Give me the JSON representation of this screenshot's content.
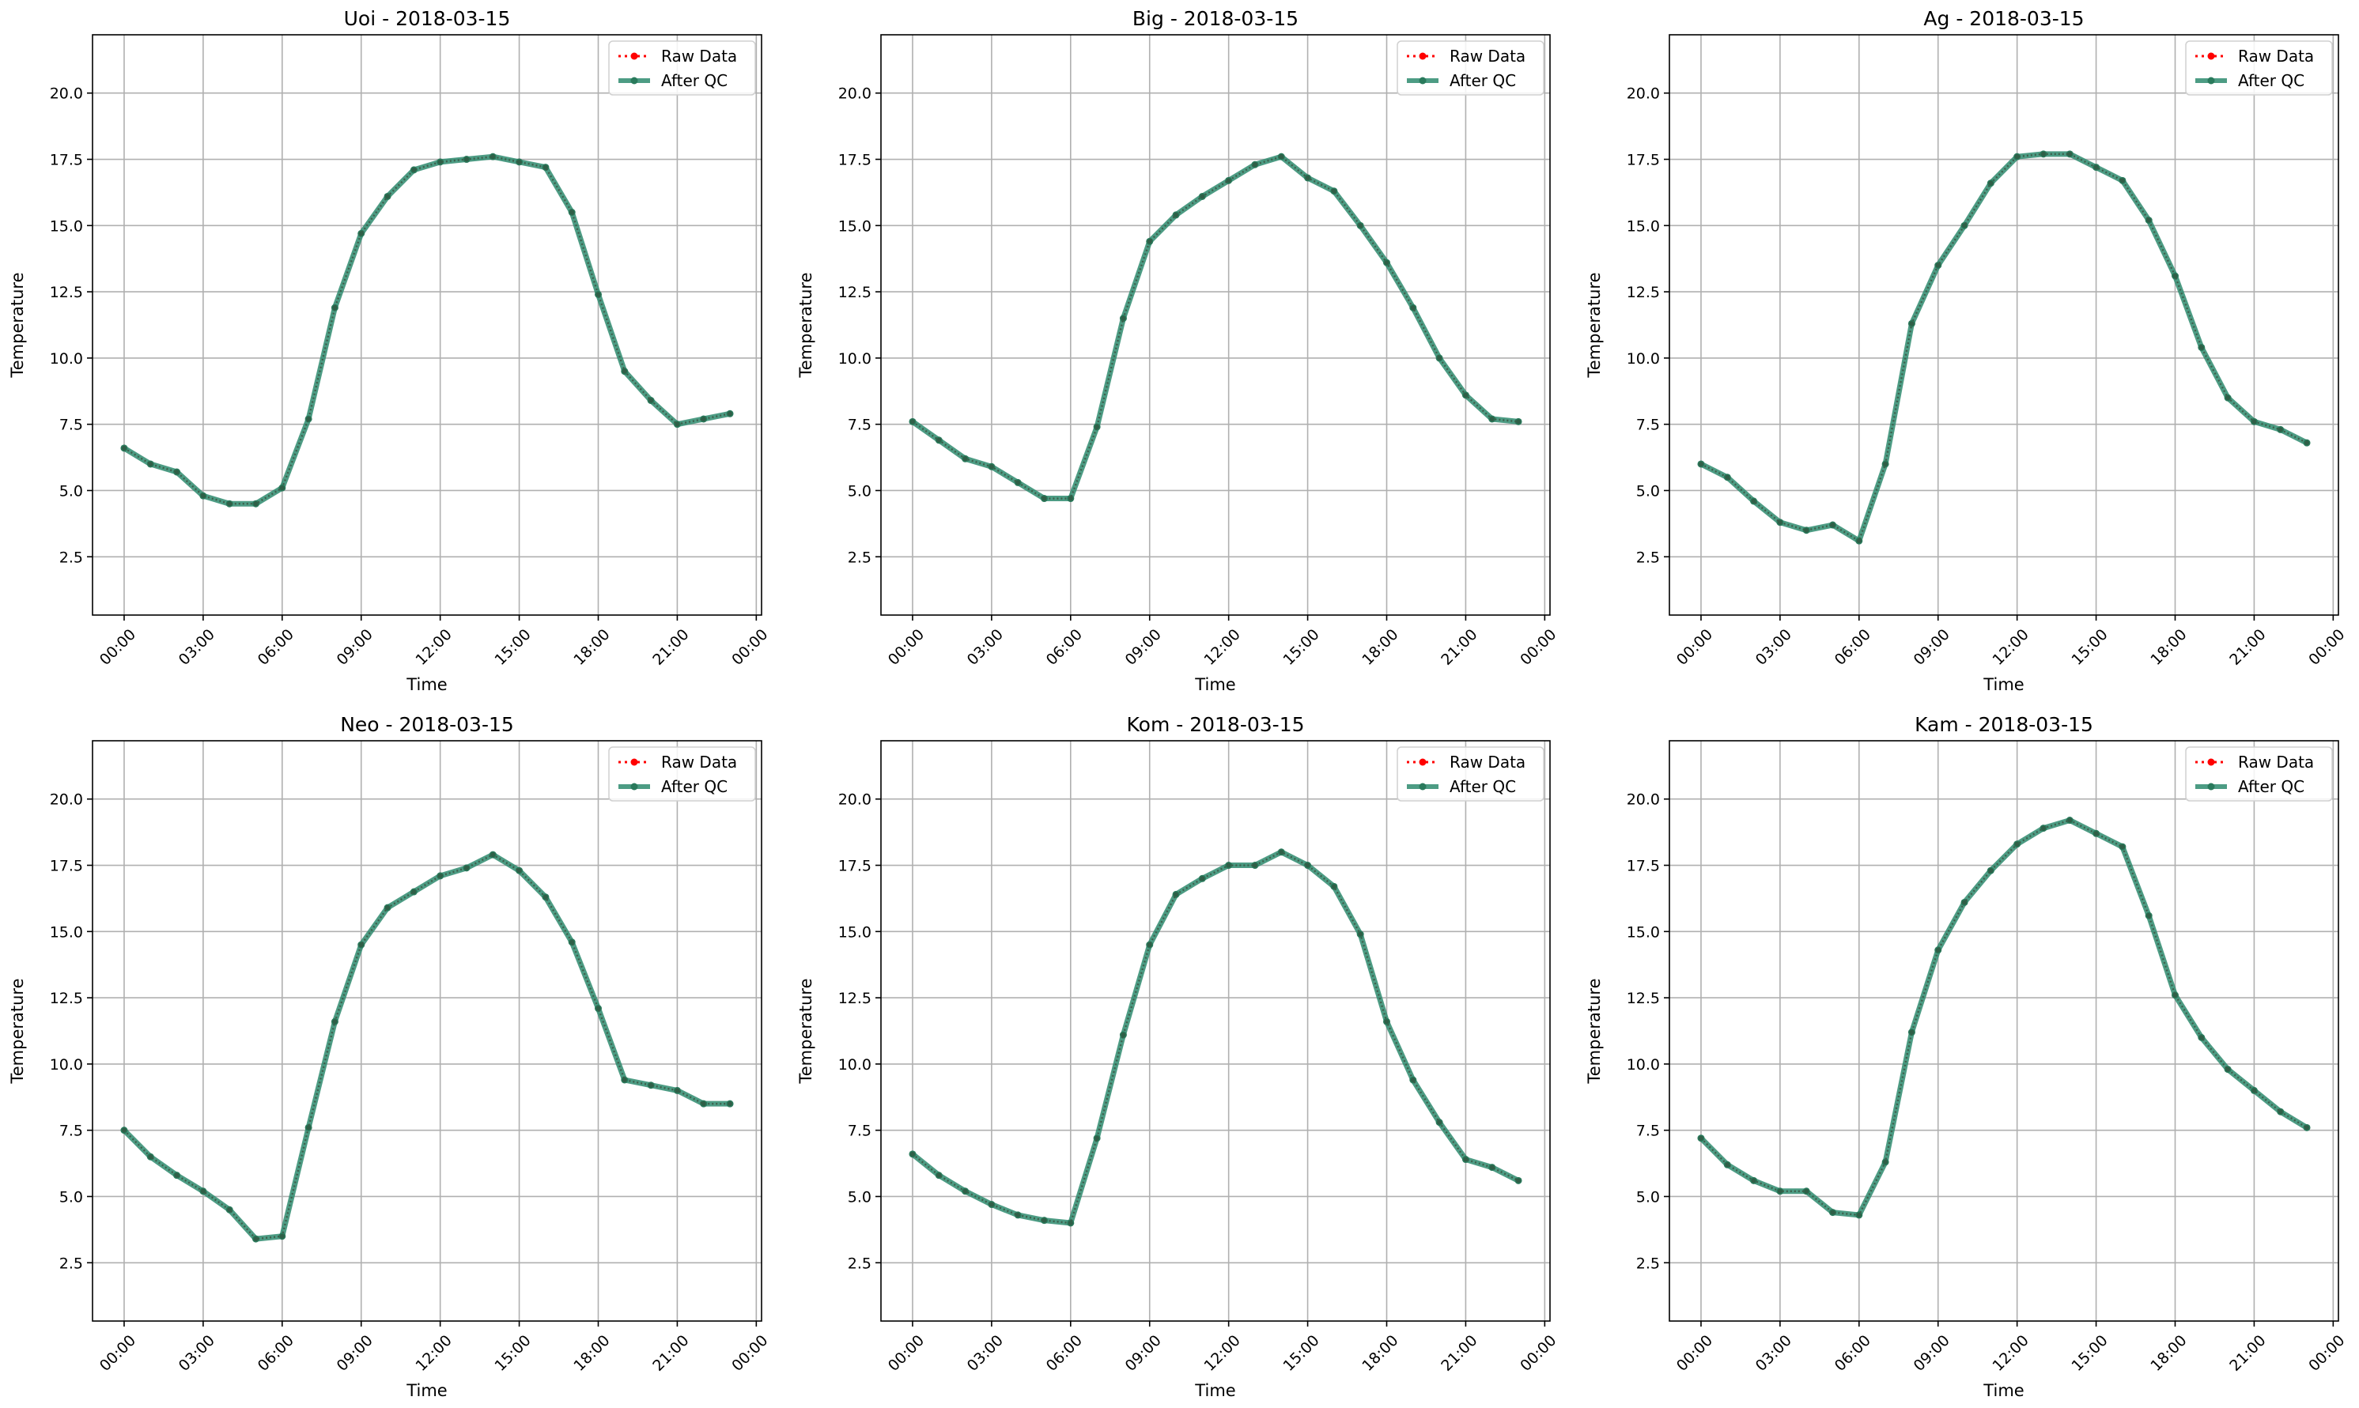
{
  "chart_data": [
    {
      "type": "line",
      "title": "Uoi - 2018-03-15",
      "xlabel": "Time",
      "ylabel": "Temperature",
      "x": [
        "00:00",
        "01:00",
        "02:00",
        "03:00",
        "04:00",
        "05:00",
        "06:00",
        "07:00",
        "08:00",
        "09:00",
        "10:00",
        "11:00",
        "12:00",
        "13:00",
        "14:00",
        "15:00",
        "16:00",
        "17:00",
        "18:00",
        "19:00",
        "20:00",
        "21:00",
        "22:00",
        "23:00"
      ],
      "xticks": [
        "00:00",
        "03:00",
        "06:00",
        "09:00",
        "12:00",
        "15:00",
        "18:00",
        "21:00",
        "00:00"
      ],
      "yticks": [
        2.5,
        5.0,
        7.5,
        10.0,
        12.5,
        15.0,
        17.5,
        20.0
      ],
      "ylim": [
        0.3,
        22.2
      ],
      "xlim_hours": [
        -1.2,
        24.2
      ],
      "grid": true,
      "legend_position": "top-right",
      "series": [
        {
          "name": "Raw Data",
          "color": "#ff0000",
          "style": "dotted-with-markers",
          "values": [
            6.6,
            6.0,
            5.7,
            4.8,
            4.5,
            4.5,
            5.1,
            7.7,
            11.9,
            14.7,
            16.1,
            17.1,
            17.4,
            17.5,
            17.6,
            17.4,
            17.2,
            15.5,
            12.4,
            9.5,
            8.4,
            7.5,
            7.7,
            7.9
          ]
        },
        {
          "name": "After QC",
          "color": "#2e8b6f",
          "style": "solid-with-markers",
          "values": [
            6.6,
            6.0,
            5.7,
            4.8,
            4.5,
            4.5,
            5.1,
            7.7,
            11.9,
            14.7,
            16.1,
            17.1,
            17.4,
            17.5,
            17.6,
            17.4,
            17.2,
            15.5,
            12.4,
            9.5,
            8.4,
            7.5,
            7.7,
            7.9
          ]
        }
      ]
    },
    {
      "type": "line",
      "title": "Big - 2018-03-15",
      "xlabel": "Time",
      "ylabel": "Temperature",
      "x": [
        "00:00",
        "01:00",
        "02:00",
        "03:00",
        "04:00",
        "05:00",
        "06:00",
        "07:00",
        "08:00",
        "09:00",
        "10:00",
        "11:00",
        "12:00",
        "13:00",
        "14:00",
        "15:00",
        "16:00",
        "17:00",
        "18:00",
        "19:00",
        "20:00",
        "21:00",
        "22:00",
        "23:00"
      ],
      "xticks": [
        "00:00",
        "03:00",
        "06:00",
        "09:00",
        "12:00",
        "15:00",
        "18:00",
        "21:00",
        "00:00"
      ],
      "yticks": [
        2.5,
        5.0,
        7.5,
        10.0,
        12.5,
        15.0,
        17.5,
        20.0
      ],
      "ylim": [
        0.3,
        22.2
      ],
      "xlim_hours": [
        -1.2,
        24.2
      ],
      "grid": true,
      "legend_position": "top-right",
      "series": [
        {
          "name": "Raw Data",
          "color": "#ff0000",
          "style": "dotted-with-markers",
          "values": [
            7.6,
            6.9,
            6.2,
            5.9,
            5.3,
            4.7,
            4.7,
            7.4,
            11.5,
            14.4,
            15.4,
            16.1,
            16.7,
            17.3,
            17.6,
            16.8,
            16.3,
            15.0,
            13.6,
            11.9,
            10.0,
            8.6,
            7.7,
            7.6
          ]
        },
        {
          "name": "After QC",
          "color": "#2e8b6f",
          "style": "solid-with-markers",
          "values": [
            7.6,
            6.9,
            6.2,
            5.9,
            5.3,
            4.7,
            4.7,
            7.4,
            11.5,
            14.4,
            15.4,
            16.1,
            16.7,
            17.3,
            17.6,
            16.8,
            16.3,
            15.0,
            13.6,
            11.9,
            10.0,
            8.6,
            7.7,
            7.6
          ]
        }
      ]
    },
    {
      "type": "line",
      "title": "Ag - 2018-03-15",
      "xlabel": "Time",
      "ylabel": "Temperature",
      "x": [
        "00:00",
        "01:00",
        "02:00",
        "03:00",
        "04:00",
        "05:00",
        "06:00",
        "07:00",
        "08:00",
        "09:00",
        "10:00",
        "11:00",
        "12:00",
        "13:00",
        "14:00",
        "15:00",
        "16:00",
        "17:00",
        "18:00",
        "19:00",
        "20:00",
        "21:00",
        "22:00",
        "23:00"
      ],
      "xticks": [
        "00:00",
        "03:00",
        "06:00",
        "09:00",
        "12:00",
        "15:00",
        "18:00",
        "21:00",
        "00:00"
      ],
      "yticks": [
        2.5,
        5.0,
        7.5,
        10.0,
        12.5,
        15.0,
        17.5,
        20.0
      ],
      "ylim": [
        0.3,
        22.2
      ],
      "xlim_hours": [
        -1.2,
        24.2
      ],
      "grid": true,
      "legend_position": "top-right",
      "series": [
        {
          "name": "Raw Data",
          "color": "#ff0000",
          "style": "dotted-with-markers",
          "values": [
            6.0,
            5.5,
            4.6,
            3.8,
            3.5,
            3.7,
            3.1,
            6.0,
            11.3,
            13.5,
            15.0,
            16.6,
            17.6,
            17.7,
            17.7,
            17.2,
            16.7,
            15.2,
            13.1,
            10.4,
            8.5,
            7.6,
            7.3,
            6.8
          ]
        },
        {
          "name": "After QC",
          "color": "#2e8b6f",
          "style": "solid-with-markers",
          "values": [
            6.0,
            5.5,
            4.6,
            3.8,
            3.5,
            3.7,
            3.1,
            6.0,
            11.3,
            13.5,
            15.0,
            16.6,
            17.6,
            17.7,
            17.7,
            17.2,
            16.7,
            15.2,
            13.1,
            10.4,
            8.5,
            7.6,
            7.3,
            6.8
          ]
        }
      ]
    },
    {
      "type": "line",
      "title": "Neo - 2018-03-15",
      "xlabel": "Time",
      "ylabel": "Temperature",
      "x": [
        "00:00",
        "01:00",
        "02:00",
        "03:00",
        "04:00",
        "05:00",
        "06:00",
        "07:00",
        "08:00",
        "09:00",
        "10:00",
        "11:00",
        "12:00",
        "13:00",
        "14:00",
        "15:00",
        "16:00",
        "17:00",
        "18:00",
        "19:00",
        "20:00",
        "21:00",
        "22:00",
        "23:00"
      ],
      "xticks": [
        "00:00",
        "03:00",
        "06:00",
        "09:00",
        "12:00",
        "15:00",
        "18:00",
        "21:00",
        "00:00"
      ],
      "yticks": [
        2.5,
        5.0,
        7.5,
        10.0,
        12.5,
        15.0,
        17.5,
        20.0
      ],
      "ylim": [
        0.3,
        22.2
      ],
      "xlim_hours": [
        -1.2,
        24.2
      ],
      "grid": true,
      "legend_position": "top-right",
      "series": [
        {
          "name": "Raw Data",
          "color": "#ff0000",
          "style": "dotted-with-markers",
          "values": [
            7.5,
            6.5,
            5.8,
            5.2,
            4.5,
            3.4,
            3.5,
            7.6,
            11.6,
            14.5,
            15.9,
            16.5,
            17.1,
            17.4,
            17.9,
            17.3,
            16.3,
            14.6,
            12.1,
            9.4,
            9.2,
            9.0,
            8.5,
            8.5
          ]
        },
        {
          "name": "After QC",
          "color": "#2e8b6f",
          "style": "solid-with-markers",
          "values": [
            7.5,
            6.5,
            5.8,
            5.2,
            4.5,
            3.4,
            3.5,
            7.6,
            11.6,
            14.5,
            15.9,
            16.5,
            17.1,
            17.4,
            17.9,
            17.3,
            16.3,
            14.6,
            12.1,
            9.4,
            9.2,
            9.0,
            8.5,
            8.5
          ]
        }
      ]
    },
    {
      "type": "line",
      "title": "Kom - 2018-03-15",
      "xlabel": "Time",
      "ylabel": "Temperature",
      "x": [
        "00:00",
        "01:00",
        "02:00",
        "03:00",
        "04:00",
        "05:00",
        "06:00",
        "07:00",
        "08:00",
        "09:00",
        "10:00",
        "11:00",
        "12:00",
        "13:00",
        "14:00",
        "15:00",
        "16:00",
        "17:00",
        "18:00",
        "19:00",
        "20:00",
        "21:00",
        "22:00",
        "23:00"
      ],
      "xticks": [
        "00:00",
        "03:00",
        "06:00",
        "09:00",
        "12:00",
        "15:00",
        "18:00",
        "21:00",
        "00:00"
      ],
      "yticks": [
        2.5,
        5.0,
        7.5,
        10.0,
        12.5,
        15.0,
        17.5,
        20.0
      ],
      "ylim": [
        0.3,
        22.2
      ],
      "xlim_hours": [
        -1.2,
        24.2
      ],
      "grid": true,
      "legend_position": "top-right",
      "series": [
        {
          "name": "Raw Data",
          "color": "#ff0000",
          "style": "dotted-with-markers",
          "values": [
            6.6,
            5.8,
            5.2,
            4.7,
            4.3,
            4.1,
            4.0,
            7.2,
            11.1,
            14.5,
            16.4,
            17.0,
            17.5,
            17.5,
            18.0,
            17.5,
            16.7,
            14.9,
            11.6,
            9.4,
            7.8,
            6.4,
            6.1,
            5.6
          ]
        },
        {
          "name": "After QC",
          "color": "#2e8b6f",
          "style": "solid-with-markers",
          "values": [
            6.6,
            5.8,
            5.2,
            4.7,
            4.3,
            4.1,
            4.0,
            7.2,
            11.1,
            14.5,
            16.4,
            17.0,
            17.5,
            17.5,
            18.0,
            17.5,
            16.7,
            14.9,
            11.6,
            9.4,
            7.8,
            6.4,
            6.1,
            5.6
          ]
        }
      ]
    },
    {
      "type": "line",
      "title": "Kam - 2018-03-15",
      "xlabel": "Time",
      "ylabel": "Temperature",
      "x": [
        "00:00",
        "01:00",
        "02:00",
        "03:00",
        "04:00",
        "05:00",
        "06:00",
        "07:00",
        "08:00",
        "09:00",
        "10:00",
        "11:00",
        "12:00",
        "13:00",
        "14:00",
        "15:00",
        "16:00",
        "17:00",
        "18:00",
        "19:00",
        "20:00",
        "21:00",
        "22:00",
        "23:00"
      ],
      "xticks": [
        "00:00",
        "03:00",
        "06:00",
        "09:00",
        "12:00",
        "15:00",
        "18:00",
        "21:00",
        "00:00"
      ],
      "yticks": [
        2.5,
        5.0,
        7.5,
        10.0,
        12.5,
        15.0,
        17.5,
        20.0
      ],
      "ylim": [
        0.3,
        22.2
      ],
      "xlim_hours": [
        -1.2,
        24.2
      ],
      "grid": true,
      "legend_position": "top-right",
      "series": [
        {
          "name": "Raw Data",
          "color": "#ff0000",
          "style": "dotted-with-markers",
          "values": [
            7.2,
            6.2,
            5.6,
            5.2,
            5.2,
            4.4,
            4.3,
            6.3,
            11.2,
            14.3,
            16.1,
            17.3,
            18.3,
            18.9,
            19.2,
            18.7,
            18.2,
            15.6,
            12.6,
            11.0,
            9.8,
            9.0,
            8.2,
            7.6
          ]
        },
        {
          "name": "After QC",
          "color": "#2e8b6f",
          "style": "solid-with-markers",
          "values": [
            7.2,
            6.2,
            5.6,
            5.2,
            5.2,
            4.4,
            4.3,
            6.3,
            11.2,
            14.3,
            16.1,
            17.3,
            18.3,
            18.9,
            19.2,
            18.7,
            18.2,
            15.6,
            12.6,
            11.0,
            9.8,
            9.0,
            8.2,
            7.6
          ]
        }
      ]
    }
  ]
}
